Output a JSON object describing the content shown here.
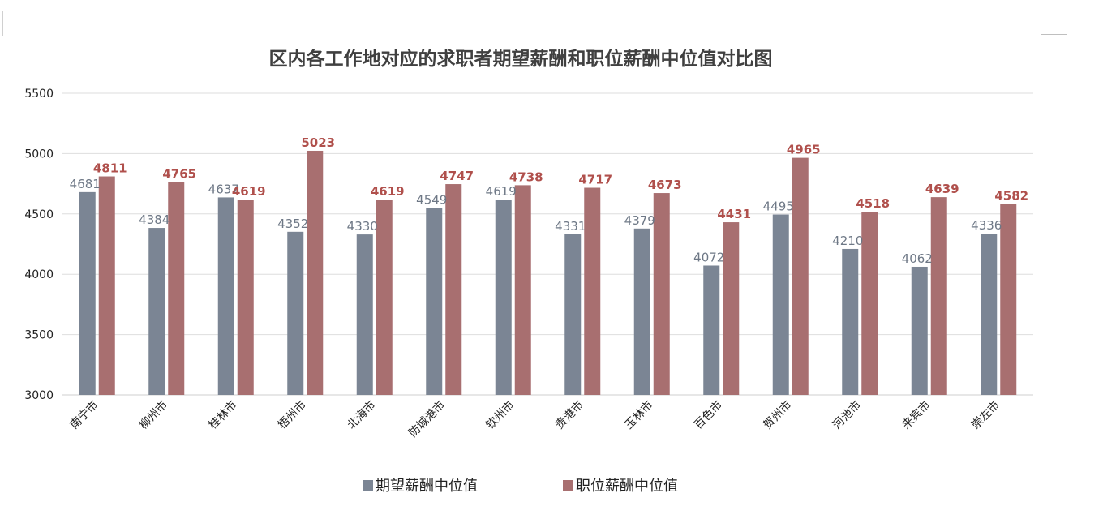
{
  "chart_data": {
    "type": "bar",
    "title": "区内各工作地对应的求职者期望薪酬和职位薪酬中位值对比图",
    "xlabel": "",
    "ylabel": "",
    "ylim": [
      3000,
      5500
    ],
    "yticks": [
      3000,
      3500,
      4000,
      4500,
      5000,
      5500
    ],
    "grid": true,
    "legend_position": "bottom",
    "categories": [
      "南宁市",
      "柳州市",
      "桂林市",
      "梧州市",
      "北海市",
      "防城港市",
      "钦州市",
      "贵港市",
      "玉林市",
      "百色市",
      "贺州市",
      "河池市",
      "来宾市",
      "崇左市"
    ],
    "series": [
      {
        "name": "期望薪酬中位值",
        "color": "#7b8594",
        "label_color": "#6e7886",
        "values": [
          4681,
          4384,
          4637,
          4352,
          4330,
          4549,
          4619,
          4331,
          4379,
          4072,
          4495,
          4210,
          4062,
          4336
        ]
      },
      {
        "name": "职位薪酬中位值",
        "color": "#a86f70",
        "label_color": "#b0504c",
        "values": [
          4811,
          4765,
          4619,
          5023,
          4619,
          4747,
          4738,
          4717,
          4673,
          4431,
          4965,
          4518,
          4639,
          4582
        ]
      }
    ]
  }
}
